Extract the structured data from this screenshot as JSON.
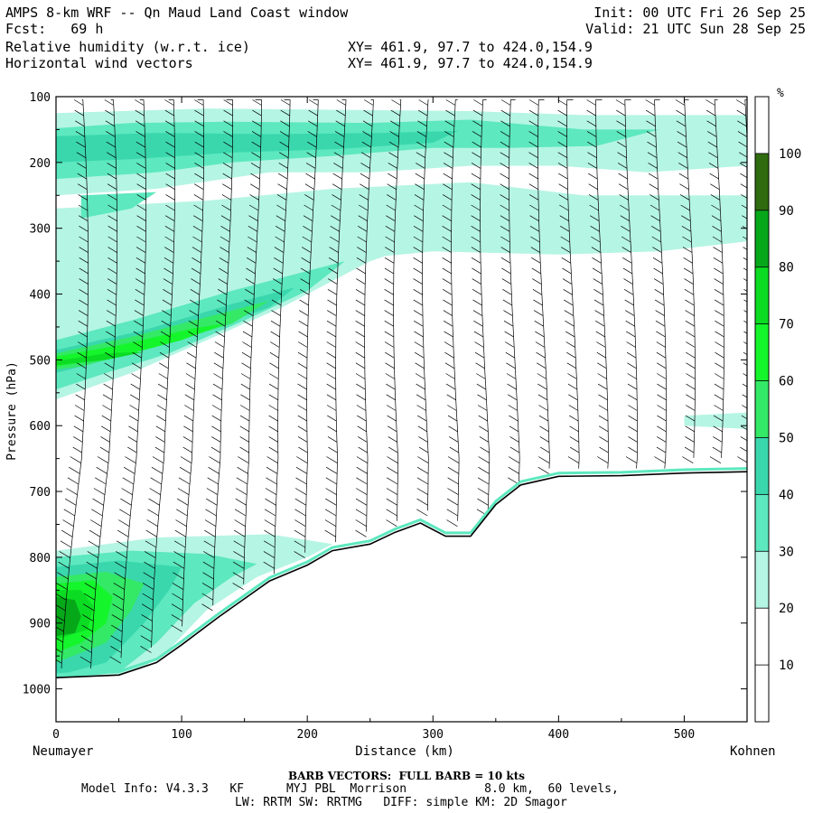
{
  "header": {
    "title": "AMPS 8-km WRF -- Qn Maud Land Coast window",
    "fcst": "Fcst:   69 h",
    "init": "Init: 00 UTC Fri 26 Sep 25",
    "valid": "Valid: 21 UTC Sun 28 Sep 25",
    "field1": "Relative humidity (w.r.t. ice)",
    "field2": "Horizontal wind vectors",
    "xy1": "XY= 461.9, 97.7 to 424.0,154.9",
    "xy2": "XY= 461.9, 97.7 to 424.0,154.9"
  },
  "footer": {
    "barb_note": "BARB VECTORS:  FULL BARB = 10 kts",
    "model_line1": "Model Info: V4.3.3   KF      MYJ PBL  Morrison           8.0 km,  60 levels,",
    "model_line2": "LW: RRTM SW: RRTMG   DIFF: simple KM: 2D Smagor"
  },
  "colors": {
    "c30": "#b5f5e3",
    "c40": "#5de8bf",
    "c50": "#3ad7ad",
    "c60": "#33e966",
    "c70": "#15f52b",
    "c80": "#0bdc23",
    "c90": "#06a81a",
    "c100": "#2f6b0f",
    "terrain_line": "#000000"
  },
  "chart_data": {
    "type": "cross-section",
    "field": "Relative humidity (w.r.t. ice)",
    "units": "%",
    "xlabel": "Distance (km)",
    "ylabel": "Pressure (hPa)",
    "left_label": "Neumayer",
    "right_label": "Kohnen",
    "xlim": [
      0,
      550
    ],
    "ylim": [
      1050,
      100
    ],
    "x_ticks": [
      0,
      100,
      200,
      300,
      400,
      500
    ],
    "y_ticks": [
      100,
      200,
      300,
      400,
      500,
      600,
      700,
      800,
      900,
      1000
    ],
    "colorbar": {
      "units_label": "%",
      "levels": [
        10,
        20,
        30,
        40,
        50,
        60,
        70,
        80,
        90,
        100
      ],
      "colors": [
        "#ffffff",
        "#ffffff",
        "#b5f5e3",
        "#5de8bf",
        "#3ad7ad",
        "#33e966",
        "#15f52b",
        "#0bdc23",
        "#06a81a",
        "#2f6b0f"
      ]
    },
    "terrain_surface": {
      "distance_km": [
        0,
        50,
        80,
        100,
        130,
        170,
        200,
        220,
        250,
        270,
        290,
        310,
        330,
        350,
        370,
        400,
        450,
        500,
        550
      ],
      "pressure_hpa": [
        983,
        979,
        960,
        933,
        890,
        836,
        812,
        790,
        780,
        762,
        748,
        768,
        768,
        720,
        690,
        677,
        676,
        672,
        670
      ]
    }
  }
}
